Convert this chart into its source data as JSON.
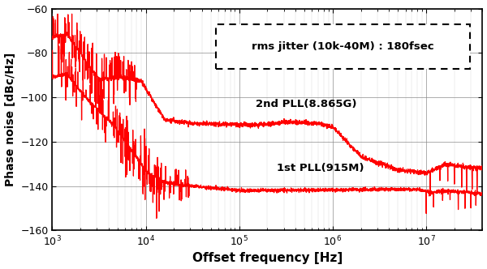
{
  "xlim": [
    1000,
    40000000
  ],
  "ylim": [
    -160,
    -60
  ],
  "yticks": [
    -160,
    -140,
    -120,
    -100,
    -80,
    -60
  ],
  "xlabel": "Offset frequency [Hz]",
  "ylabel": "Phase noise [dBc/Hz]",
  "line_color": "#FF0000",
  "annotation_text": "rms jitter (10k-40M) : 180fsec",
  "label_2nd": "2nd PLL(8.865G)",
  "label_1st": "1st PLL(915M)",
  "bg_color": "#FFFFFF",
  "figsize": [
    6.0,
    3.32
  ],
  "dpi": 100
}
